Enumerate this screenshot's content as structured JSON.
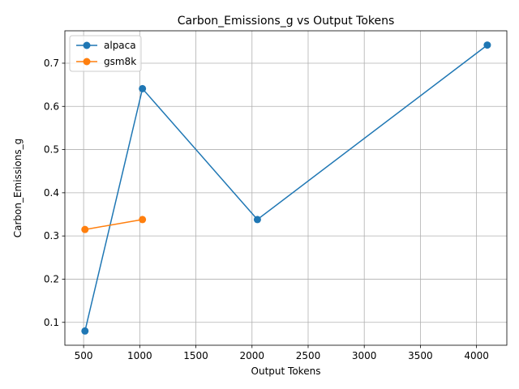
{
  "chart_data": {
    "type": "line",
    "title": "Carbon_Emissions_g vs Output Tokens",
    "xlabel": "Output Tokens",
    "ylabel": "Carbon_Emissions_g",
    "xlim": [
      333,
      4270
    ],
    "ylim": [
      0.047,
      0.775
    ],
    "xticks": [
      500,
      1000,
      1500,
      2000,
      2500,
      3000,
      3500,
      4000
    ],
    "yticks": [
      0.1,
      0.2,
      0.3,
      0.4,
      0.5,
      0.6,
      0.7
    ],
    "grid": true,
    "legend_position": "top-left",
    "series": [
      {
        "name": "alpaca",
        "color": "#1f77b4",
        "marker": "circle",
        "x": [
          512,
          1024,
          2048,
          4096
        ],
        "y": [
          0.08,
          0.641,
          0.338,
          0.742
        ]
      },
      {
        "name": "gsm8k",
        "color": "#ff7f0e",
        "marker": "circle",
        "x": [
          512,
          1024
        ],
        "y": [
          0.315,
          0.338
        ]
      }
    ]
  }
}
